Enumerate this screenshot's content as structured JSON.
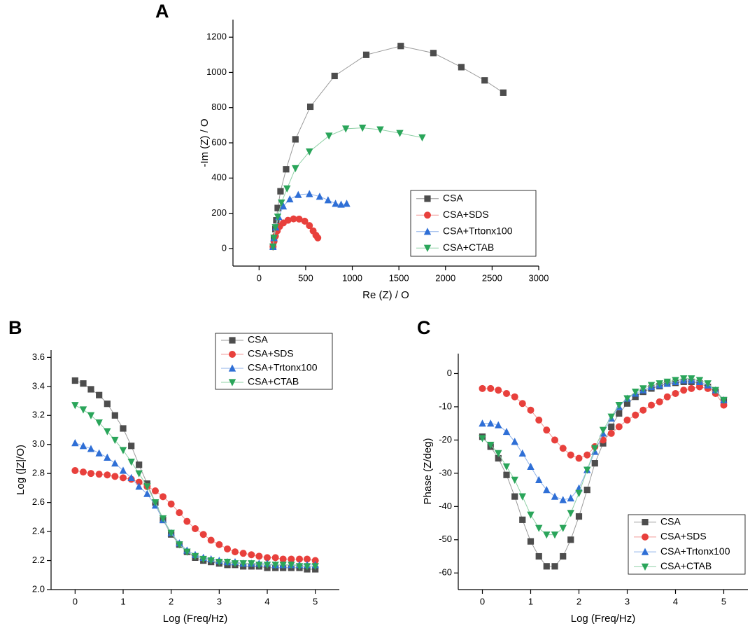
{
  "chart_data": [
    {
      "type": "scatter-line",
      "panel_label": "A",
      "x_label": "Re (Z) / O",
      "y_label": "-Im (Z) / O",
      "xlim": [
        -280,
        3000
      ],
      "ylim": [
        -100,
        1300
      ],
      "xticks": [
        0,
        500,
        1000,
        1500,
        2000,
        2500,
        3000
      ],
      "yticks": [
        0,
        200,
        400,
        600,
        800,
        1000,
        1200
      ],
      "legend": "lower right",
      "series": [
        {
          "name": "CSA",
          "color": "#4d4d4d",
          "line_color": "#9a9a9a",
          "marker": "square",
          "x": [
            150,
            160,
            175,
            185,
            200,
            230,
            290,
            390,
            550,
            810,
            1150,
            1520,
            1870,
            2170,
            2420,
            2620
          ],
          "values": [
            10,
            60,
            110,
            160,
            230,
            325,
            450,
            620,
            805,
            980,
            1100,
            1150,
            1110,
            1030,
            955,
            885
          ]
        },
        {
          "name": "CSA+SDS",
          "color": "#e8403c",
          "line_color": "#f09a98",
          "marker": "circle",
          "x": [
            150,
            160,
            175,
            195,
            220,
            260,
            310,
            370,
            430,
            490,
            540,
            580,
            610,
            630
          ],
          "values": [
            10,
            40,
            70,
            100,
            125,
            145,
            160,
            168,
            167,
            155,
            130,
            100,
            75,
            60
          ]
        },
        {
          "name": "CSA+Trtonx100",
          "color": "#2f6fd6",
          "line_color": "#8fb2ea",
          "marker": "triangle-up",
          "x": [
            150,
            160,
            180,
            210,
            260,
            330,
            420,
            540,
            650,
            740,
            820,
            880,
            940
          ],
          "values": [
            10,
            60,
            120,
            180,
            240,
            280,
            305,
            310,
            295,
            275,
            255,
            250,
            255
          ]
        },
        {
          "name": "CSA+CTAB",
          "color": "#2aa55a",
          "line_color": "#8fd0a6",
          "marker": "triangle-down",
          "x": [
            150,
            160,
            175,
            200,
            240,
            300,
            390,
            540,
            750,
            930,
            1110,
            1300,
            1510,
            1750
          ],
          "values": [
            10,
            60,
            120,
            180,
            260,
            340,
            455,
            550,
            640,
            680,
            685,
            675,
            655,
            630
          ]
        }
      ]
    },
    {
      "type": "scatter-line",
      "panel_label": "B",
      "x_label": "Log (Freq/Hz)",
      "y_label": "Log (|Z|/O)",
      "xlim": [
        -0.5,
        5.5
      ],
      "ylim": [
        2.0,
        3.65
      ],
      "xticks": [
        0,
        1,
        2,
        3,
        4,
        5
      ],
      "yticks": [
        {
          "value": 2,
          "label": "2.0"
        },
        2.2,
        2.4,
        2.6,
        2.8,
        {
          "value": 3,
          "label": "3.0"
        },
        3.2,
        3.4,
        3.6
      ],
      "legend": "upper right",
      "x": [
        0,
        0.17,
        0.33,
        0.5,
        0.67,
        0.83,
        1,
        1.17,
        1.33,
        1.5,
        1.67,
        1.83,
        2,
        2.17,
        2.33,
        2.5,
        2.67,
        2.83,
        3,
        3.17,
        3.33,
        3.5,
        3.67,
        3.83,
        4,
        4.17,
        4.33,
        4.5,
        4.67,
        4.83,
        5
      ],
      "series": [
        {
          "name": "CSA",
          "color": "#4d4d4d",
          "line_color": "#9a9a9a",
          "marker": "square",
          "values": [
            3.44,
            3.42,
            3.38,
            3.34,
            3.28,
            3.2,
            3.11,
            2.99,
            2.86,
            2.73,
            2.6,
            2.48,
            2.38,
            2.31,
            2.26,
            2.22,
            2.2,
            2.19,
            2.18,
            2.17,
            2.17,
            2.16,
            2.16,
            2.16,
            2.15,
            2.15,
            2.15,
            2.15,
            2.15,
            2.14,
            2.14
          ]
        },
        {
          "name": "CSA+SDS",
          "color": "#e8403c",
          "line_color": "#f09a98",
          "marker": "circle",
          "values": [
            2.82,
            2.81,
            2.8,
            2.795,
            2.79,
            2.78,
            2.77,
            2.76,
            2.74,
            2.71,
            2.68,
            2.64,
            2.59,
            2.53,
            2.47,
            2.42,
            2.38,
            2.34,
            2.31,
            2.28,
            2.26,
            2.25,
            2.24,
            2.23,
            2.22,
            2.22,
            2.21,
            2.21,
            2.21,
            2.21,
            2.2
          ]
        },
        {
          "name": "CSA+Trtonx100",
          "color": "#2f6fd6",
          "line_color": "#8fb2ea",
          "marker": "triangle-up",
          "values": [
            3.01,
            2.99,
            2.97,
            2.94,
            2.91,
            2.87,
            2.82,
            2.77,
            2.71,
            2.66,
            2.58,
            2.48,
            2.39,
            2.32,
            2.27,
            2.24,
            2.22,
            2.21,
            2.2,
            2.19,
            2.19,
            2.18,
            2.18,
            2.18,
            2.18,
            2.17,
            2.17,
            2.17,
            2.17,
            2.17,
            2.17
          ]
        },
        {
          "name": "CSA+CTAB",
          "color": "#2aa55a",
          "line_color": "#8fd0a6",
          "marker": "triangle-down",
          "values": [
            3.27,
            3.24,
            3.2,
            3.15,
            3.09,
            3.03,
            2.96,
            2.88,
            2.8,
            2.71,
            2.6,
            2.49,
            2.39,
            2.31,
            2.26,
            2.23,
            2.21,
            2.2,
            2.19,
            2.19,
            2.18,
            2.18,
            2.18,
            2.17,
            2.17,
            2.17,
            2.17,
            2.17,
            2.16,
            2.16,
            2.16
          ]
        }
      ]
    },
    {
      "type": "scatter-line",
      "panel_label": "C",
      "x_label": "Log (Freq/Hz)",
      "y_label": "Phase (Z/deg)",
      "xlim": [
        -0.5,
        5.5
      ],
      "ylim": [
        -65,
        6
      ],
      "xticks": [
        0,
        1,
        2,
        3,
        4,
        5
      ],
      "yticks": [
        0,
        -10,
        -20,
        -30,
        -40,
        -50,
        -60
      ],
      "legend": "lower right",
      "x": [
        0,
        0.17,
        0.33,
        0.5,
        0.67,
        0.83,
        1,
        1.17,
        1.33,
        1.5,
        1.67,
        1.83,
        2,
        2.17,
        2.33,
        2.5,
        2.67,
        2.83,
        3,
        3.17,
        3.33,
        3.5,
        3.67,
        3.83,
        4,
        4.17,
        4.33,
        4.5,
        4.67,
        4.83,
        5
      ],
      "series": [
        {
          "name": "CSA",
          "color": "#4d4d4d",
          "line_color": "#9a9a9a",
          "marker": "square",
          "values": [
            -19,
            -22,
            -25.5,
            -30.5,
            -37,
            -44,
            -50.5,
            -55,
            -58,
            -58,
            -55,
            -50,
            -43,
            -35,
            -27,
            -21,
            -16,
            -12,
            -9,
            -7,
            -5.5,
            -4.5,
            -3.8,
            -3,
            -2.8,
            -2.5,
            -2.5,
            -3,
            -4,
            -5.5,
            -8
          ]
        },
        {
          "name": "CSA+SDS",
          "color": "#e8403c",
          "line_color": "#f09a98",
          "marker": "circle",
          "values": [
            -4.5,
            -4.5,
            -5,
            -6,
            -7,
            -9,
            -11,
            -14,
            -17,
            -20,
            -22.5,
            -24.5,
            -25.5,
            -24.5,
            -22,
            -20,
            -18,
            -16,
            -14,
            -12.5,
            -11,
            -9.5,
            -8.5,
            -7,
            -6,
            -5,
            -4.5,
            -4,
            -4.5,
            -6,
            -9.5
          ]
        },
        {
          "name": "CSA+Trtonx100",
          "color": "#2f6fd6",
          "line_color": "#8fb2ea",
          "marker": "triangle-up",
          "values": [
            -15,
            -15,
            -15.5,
            -17.5,
            -20.5,
            -24,
            -28,
            -32,
            -35,
            -37,
            -38,
            -37.5,
            -34.5,
            -29,
            -23.5,
            -18,
            -13.5,
            -10,
            -7.5,
            -6,
            -5,
            -4,
            -3.5,
            -3,
            -2.5,
            -2,
            -2,
            -2.5,
            -3.5,
            -5,
            -8
          ]
        },
        {
          "name": "CSA+CTAB",
          "color": "#2aa55a",
          "line_color": "#8fd0a6",
          "marker": "triangle-down",
          "values": [
            -19.5,
            -21.5,
            -24,
            -28,
            -32,
            -37,
            -42.5,
            -46.5,
            -48.5,
            -48.5,
            -46.5,
            -42,
            -36,
            -29,
            -22.5,
            -17,
            -13,
            -9.5,
            -7.5,
            -5.5,
            -4.5,
            -3.5,
            -3,
            -2.5,
            -2,
            -1.5,
            -1.5,
            -2,
            -3,
            -5,
            -8
          ]
        }
      ]
    }
  ]
}
